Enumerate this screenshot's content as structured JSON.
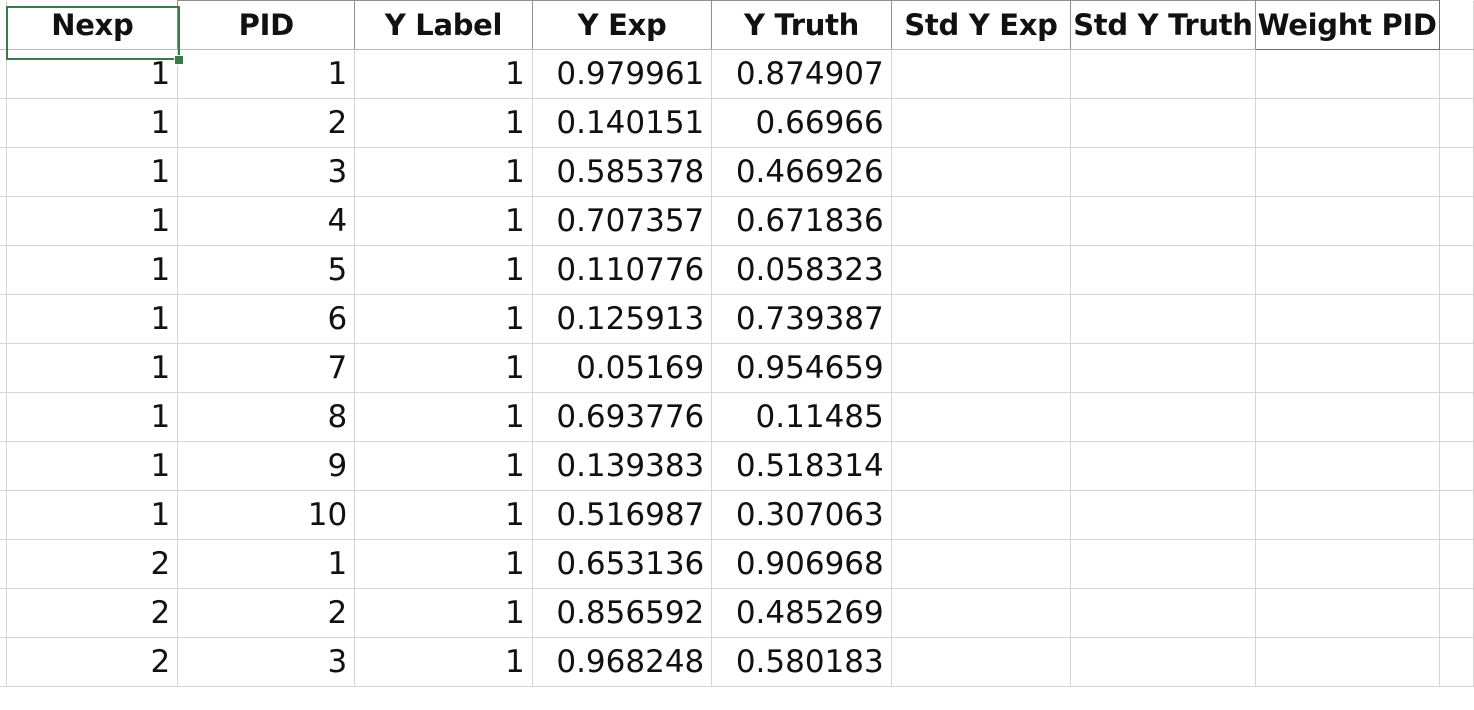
{
  "spreadsheet": {
    "columns": [
      "Nexp",
      "PID",
      "Y Label",
      "Y Exp",
      "Y Truth",
      "Std Y Exp",
      "Std Y Truth",
      "Weight PID"
    ],
    "rows": [
      [
        "1",
        "1",
        "1",
        "0.979961",
        "0.874907",
        "",
        "",
        ""
      ],
      [
        "1",
        "2",
        "1",
        "0.140151",
        "0.66966",
        "",
        "",
        ""
      ],
      [
        "1",
        "3",
        "1",
        "0.585378",
        "0.466926",
        "",
        "",
        ""
      ],
      [
        "1",
        "4",
        "1",
        "0.707357",
        "0.671836",
        "",
        "",
        ""
      ],
      [
        "1",
        "5",
        "1",
        "0.110776",
        "0.058323",
        "",
        "",
        ""
      ],
      [
        "1",
        "6",
        "1",
        "0.125913",
        "0.739387",
        "",
        "",
        ""
      ],
      [
        "1",
        "7",
        "1",
        "0.05169",
        "0.954659",
        "",
        "",
        ""
      ],
      [
        "1",
        "8",
        "1",
        "0.693776",
        "0.11485",
        "",
        "",
        ""
      ],
      [
        "1",
        "9",
        "1",
        "0.139383",
        "0.518314",
        "",
        "",
        ""
      ],
      [
        "1",
        "10",
        "1",
        "0.516987",
        "0.307063",
        "",
        "",
        ""
      ],
      [
        "2",
        "1",
        "1",
        "0.653136",
        "0.906968",
        "",
        "",
        ""
      ],
      [
        "2",
        "2",
        "1",
        "0.856592",
        "0.485269",
        "",
        "",
        ""
      ],
      [
        "2",
        "3",
        "1",
        "0.968248",
        "0.580183",
        "",
        "",
        ""
      ]
    ],
    "selected_cell": {
      "row": 0,
      "col": 0
    },
    "colors": {
      "selection": "#3a7a45",
      "gridline": "#d4d4d4",
      "text": "#111111"
    }
  }
}
